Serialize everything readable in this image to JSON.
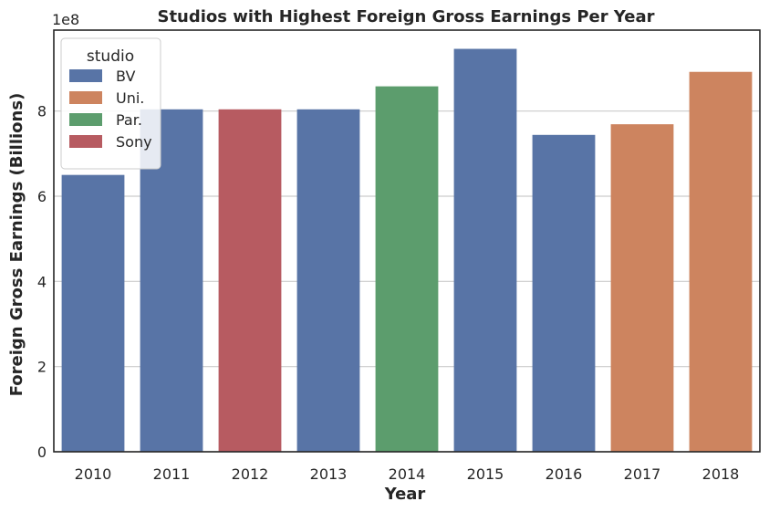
{
  "chart_data": {
    "type": "bar",
    "title": "Studios with Highest Foreign Gross Earnings Per Year",
    "xlabel": "Year",
    "ylabel": "Foreign Gross Earnings (Billions)",
    "y_offset_label": "1e8",
    "categories": [
      "2010",
      "2011",
      "2012",
      "2013",
      "2014",
      "2015",
      "2016",
      "2017",
      "2018"
    ],
    "values": [
      6.5,
      8.04,
      8.04,
      8.04,
      8.58,
      9.46,
      7.44,
      7.69,
      8.92
    ],
    "studios": [
      "BV",
      "BV",
      "Sony",
      "BV",
      "Par.",
      "BV",
      "BV",
      "Uni.",
      "Uni."
    ],
    "ylim": [
      0,
      9.9
    ],
    "yticks": [
      0,
      2,
      4,
      6,
      8
    ],
    "grid": "horizontal",
    "legend": {
      "title": "studio",
      "placement": "top-left",
      "entries": [
        {
          "name": "BV",
          "color": "#5874a6"
        },
        {
          "name": "Uni.",
          "color": "#cd845f"
        },
        {
          "name": "Par.",
          "color": "#5c9d6d"
        },
        {
          "name": "Sony",
          "color": "#b75b61"
        }
      ]
    }
  }
}
